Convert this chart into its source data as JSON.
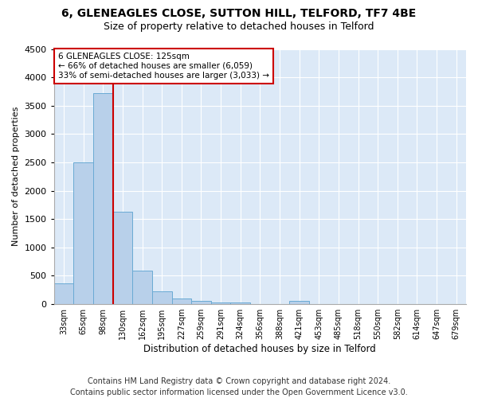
{
  "title1": "6, GLENEAGLES CLOSE, SUTTON HILL, TELFORD, TF7 4BE",
  "title2": "Size of property relative to detached houses in Telford",
  "xlabel": "Distribution of detached houses by size in Telford",
  "ylabel": "Number of detached properties",
  "categories": [
    "33sqm",
    "65sqm",
    "98sqm",
    "130sqm",
    "162sqm",
    "195sqm",
    "227sqm",
    "259sqm",
    "291sqm",
    "324sqm",
    "356sqm",
    "388sqm",
    "421sqm",
    "453sqm",
    "485sqm",
    "518sqm",
    "550sqm",
    "582sqm",
    "614sqm",
    "647sqm",
    "679sqm"
  ],
  "values": [
    370,
    2500,
    3720,
    1630,
    590,
    230,
    105,
    60,
    35,
    35,
    0,
    0,
    55,
    0,
    0,
    0,
    0,
    0,
    0,
    0,
    0
  ],
  "bar_color": "#b8d0ea",
  "bar_edge_color": "#6aaad4",
  "vline_color": "#cc0000",
  "annotation_text": "6 GLENEAGLES CLOSE: 125sqm\n← 66% of detached houses are smaller (6,059)\n33% of semi-detached houses are larger (3,033) →",
  "annotation_box_color": "#ffffff",
  "annotation_border_color": "#cc0000",
  "ylim": [
    0,
    4500
  ],
  "yticks": [
    0,
    500,
    1000,
    1500,
    2000,
    2500,
    3000,
    3500,
    4000,
    4500
  ],
  "footnote": "Contains HM Land Registry data © Crown copyright and database right 2024.\nContains public sector information licensed under the Open Government Licence v3.0.",
  "fig_bg_color": "#ffffff",
  "plot_bg_color": "#dce9f7",
  "grid_color": "#ffffff",
  "title1_fontsize": 10,
  "title2_fontsize": 9,
  "footnote_fontsize": 7
}
